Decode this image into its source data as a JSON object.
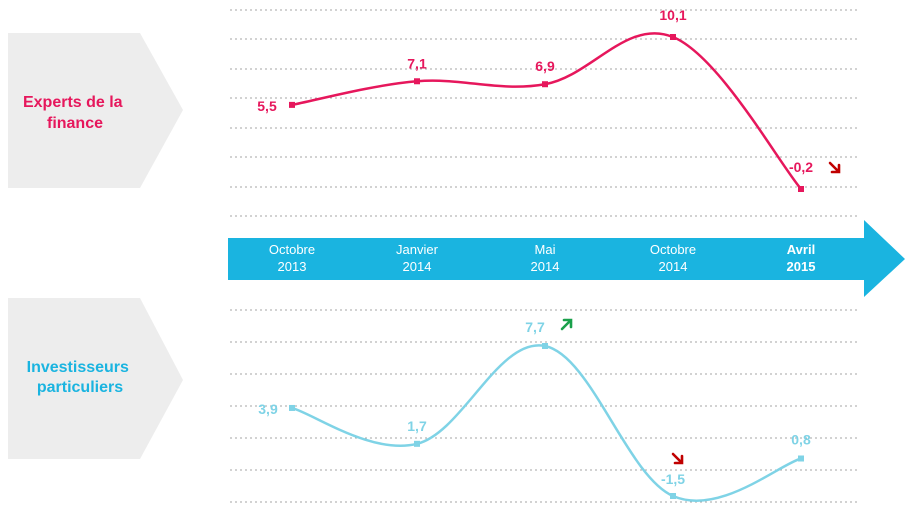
{
  "colors": {
    "experts": "#e6175c",
    "investors": "#7fd3e6",
    "axis": "#1ab4e0",
    "panel": "#ededed",
    "grid": "#a6a6a6",
    "down_arrow": "#c00000",
    "up_arrow": "#1aa04b"
  },
  "panels": {
    "experts_label": [
      "Experts de la",
      "finance"
    ],
    "investors_label": [
      "Investisseurs",
      "particuliers"
    ]
  },
  "chart_data": {
    "type": "line",
    "categories": [
      {
        "line1": "Octobre",
        "line2": "2013",
        "bold": false
      },
      {
        "line1": "Janvier",
        "line2": "2014",
        "bold": false
      },
      {
        "line1": "Mai",
        "line2": "2014",
        "bold": false
      },
      {
        "line1": "Octobre",
        "line2": "2014",
        "bold": false
      },
      {
        "line1": "Avril",
        "line2": "2015",
        "bold": true
      }
    ],
    "series": [
      {
        "name": "Experts de la finance",
        "values": [
          5.5,
          7.1,
          6.9,
          10.1,
          -0.2
        ],
        "labels": [
          "5,5",
          "7,1",
          "6,9",
          "10,1",
          "-0,2"
        ],
        "trend_icons": [
          null,
          null,
          null,
          null,
          "down"
        ]
      },
      {
        "name": "Investisseurs particuliers",
        "values": [
          3.9,
          1.7,
          7.7,
          -1.5,
          0.8
        ],
        "labels": [
          "3,9",
          "1,7",
          "7,7",
          "-1,5",
          "0,8"
        ],
        "trend_icons": [
          null,
          null,
          "up",
          "down",
          null
        ]
      }
    ],
    "grid": true
  }
}
